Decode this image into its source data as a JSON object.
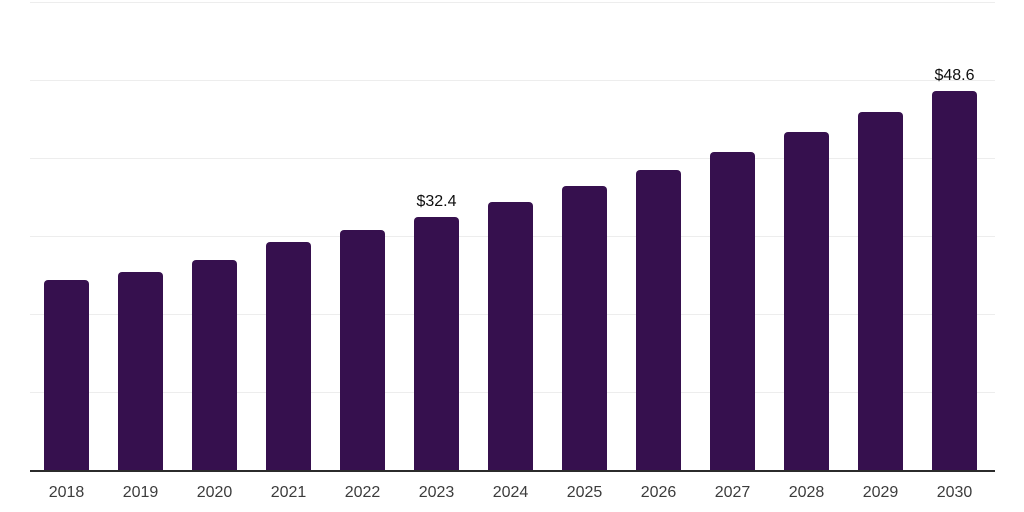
{
  "chart_data": {
    "type": "bar",
    "categories": [
      "2018",
      "2019",
      "2020",
      "2021",
      "2022",
      "2023",
      "2024",
      "2025",
      "2026",
      "2027",
      "2028",
      "2029",
      "2030"
    ],
    "values": [
      24.4,
      25.4,
      26.9,
      29.2,
      30.8,
      32.4,
      34.3,
      36.4,
      38.5,
      40.8,
      43.3,
      45.9,
      48.6
    ],
    "bar_labels": [
      "",
      "",
      "",
      "",
      "",
      "$32.4",
      "",
      "",
      "",
      "",
      "",
      "",
      "$48.6"
    ],
    "title": "",
    "xlabel": "",
    "ylabel": "",
    "ylim": [
      0,
      60
    ],
    "gridline_step": 10,
    "grid": true,
    "legend": "none",
    "y_tick_labels_visible": false,
    "colors": {
      "bar": "#36104E",
      "gridline": "#ededed",
      "axis": "#2b2b2b",
      "tick_label": "#3c3c3c",
      "value_label": "#0f0f0f",
      "background": "#ffffff"
    }
  }
}
